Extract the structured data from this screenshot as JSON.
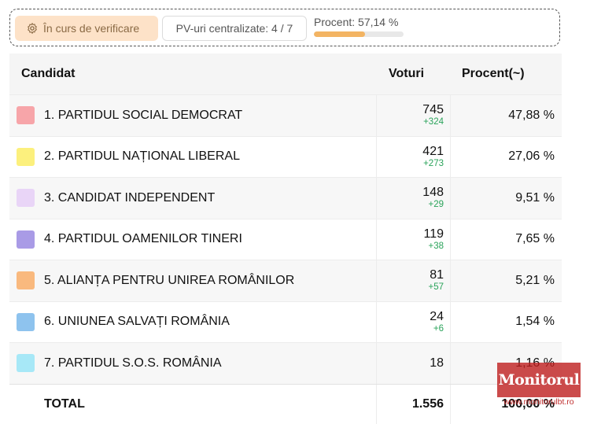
{
  "status": {
    "badge": "În curs de verificare",
    "pv_label": "PV-uri centralizate: 4 / 7",
    "progress_label": "Procent: 57,14 %",
    "progress_value": 0.5714
  },
  "table": {
    "headers": {
      "candidate": "Candidat",
      "votes": "Voturi",
      "percent": "Procent(~)"
    },
    "rows": [
      {
        "name": "1. PARTIDUL SOCIAL DEMOCRAT",
        "votes": "745",
        "delta": "+324",
        "percent": "47,88 %",
        "color": "#f7a5a9"
      },
      {
        "name": "2. PARTIDUL NAȚIONAL LIBERAL",
        "votes": "421",
        "delta": "+273",
        "percent": "27,06 %",
        "color": "#fcf07d"
      },
      {
        "name": "3. CANDIDAT INDEPENDENT",
        "votes": "148",
        "delta": "+29",
        "percent": "9,51 %",
        "color": "#e9d5f7"
      },
      {
        "name": "4. PARTIDUL OAMENILOR TINERI",
        "votes": "119",
        "delta": "+38",
        "percent": "7,65 %",
        "color": "#a99be6"
      },
      {
        "name": "5. ALIANȚA PENTRU UNIREA ROMÂNILOR",
        "votes": "81",
        "delta": "+57",
        "percent": "5,21 %",
        "color": "#f9b97e"
      },
      {
        "name": "6. UNIUNEA SALVAȚI ROMÂNIA",
        "votes": "24",
        "delta": "+6",
        "percent": "1,54 %",
        "color": "#8ec3ee"
      },
      {
        "name": "7. PARTIDUL S.O.S. ROMÂNIA",
        "votes": "18",
        "delta": "",
        "percent": "1,16 %",
        "color": "#a7e8f7"
      }
    ],
    "total": {
      "label": "TOTAL",
      "votes": "1.556",
      "percent": "100,00 %"
    }
  },
  "watermark": {
    "brand": "Monitorul",
    "url": "www.monitorulbt.ro"
  }
}
